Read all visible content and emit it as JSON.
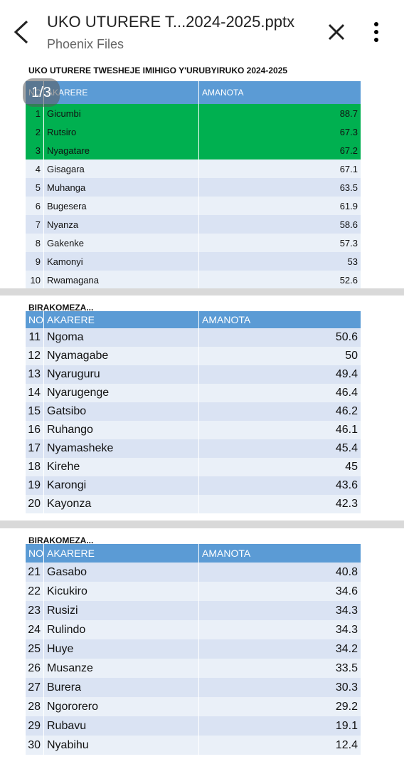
{
  "header": {
    "title": "UKO UTURERE T...2024-2025.pptx",
    "subtitle": "Phoenix Files"
  },
  "page_badge": "1/3",
  "highlight": {
    "rows": 3,
    "color": "#00b050"
  },
  "slides": [
    {
      "title": "UKO UTURERE TWESHEJE IMIHIGO Y'URUBYIRUKO 2024-2025",
      "columns": [
        "NO",
        "AKARERE",
        "AMANOTA"
      ],
      "rows": [
        [
          1,
          "Gicumbi",
          88.7
        ],
        [
          2,
          "Rutsiro",
          67.3
        ],
        [
          3,
          "Nyagatare",
          67.2
        ],
        [
          4,
          "Gisagara",
          67.1
        ],
        [
          5,
          "Muhanga",
          63.5
        ],
        [
          6,
          "Bugesera",
          61.9
        ],
        [
          7,
          "Nyanza",
          58.6
        ],
        [
          8,
          "Gakenke",
          57.3
        ],
        [
          9,
          "Kamonyi",
          53
        ],
        [
          10,
          "Rwamagana",
          52.6
        ]
      ]
    },
    {
      "title": "BIRAKOMEZA...",
      "columns": [
        "NO",
        "AKARERE",
        "AMANOTA"
      ],
      "rows": [
        [
          11,
          "Ngoma",
          50.6
        ],
        [
          12,
          "Nyamagabe",
          50
        ],
        [
          13,
          "Nyaruguru",
          49.4
        ],
        [
          14,
          "Nyarugenge",
          46.4
        ],
        [
          15,
          "Gatsibo",
          46.2
        ],
        [
          16,
          "Ruhango",
          46.1
        ],
        [
          17,
          "Nyamasheke",
          45.4
        ],
        [
          18,
          "Kirehe",
          45
        ],
        [
          19,
          "Karongi",
          43.6
        ],
        [
          20,
          "Kayonza",
          42.3
        ]
      ]
    },
    {
      "title": "BIRAKOMEZA...",
      "columns": [
        "NO",
        "AKARERE",
        "AMANOTA"
      ],
      "rows": [
        [
          21,
          "Gasabo",
          40.8
        ],
        [
          22,
          "Kicukiro",
          34.6
        ],
        [
          23,
          "Rusizi",
          34.3
        ],
        [
          24,
          "Rulindo",
          34.3
        ],
        [
          25,
          "Huye",
          34.2
        ],
        [
          26,
          "Musanze",
          33.5
        ],
        [
          27,
          "Burera",
          30.3
        ],
        [
          28,
          "Ngororero",
          29.2
        ],
        [
          29,
          "Rubavu",
          19.1
        ],
        [
          30,
          "Nyabihu",
          12.4
        ]
      ]
    }
  ]
}
